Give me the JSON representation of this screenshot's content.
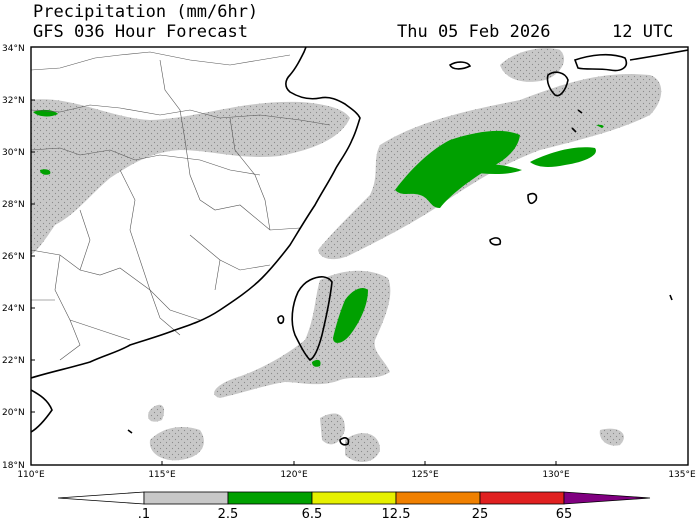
{
  "header": {
    "title": "Precipitation (mm/6hr)",
    "model": "GFS 036 Hour Forecast",
    "valid_date": "Thu 05 Feb 2026",
    "valid_time": "12 UTC"
  },
  "map": {
    "lon_range": [
      110,
      135
    ],
    "lat_range": [
      18,
      34
    ],
    "lon_ticks": [
      "110°E",
      "115°E",
      "120°E",
      "125°E",
      "130°E",
      "135°E"
    ],
    "lat_ticks": [
      "34°N",
      "32°N",
      "30°N",
      "28°N",
      "26°N",
      "24°N",
      "22°N",
      "20°N",
      "18°N"
    ]
  },
  "colorbar": {
    "labels": [
      ".1",
      "2.5",
      "6.5",
      "12.5",
      "25",
      "65"
    ],
    "colors": [
      "#c8c8c8",
      "#00a000",
      "#e6f000",
      "#f08000",
      "#e02020",
      "#800080"
    ]
  },
  "colors": {
    "light_precip": "#c8c8c8",
    "moderate_precip": "#00a000",
    "coast": "#000000",
    "borders": "#555555"
  }
}
